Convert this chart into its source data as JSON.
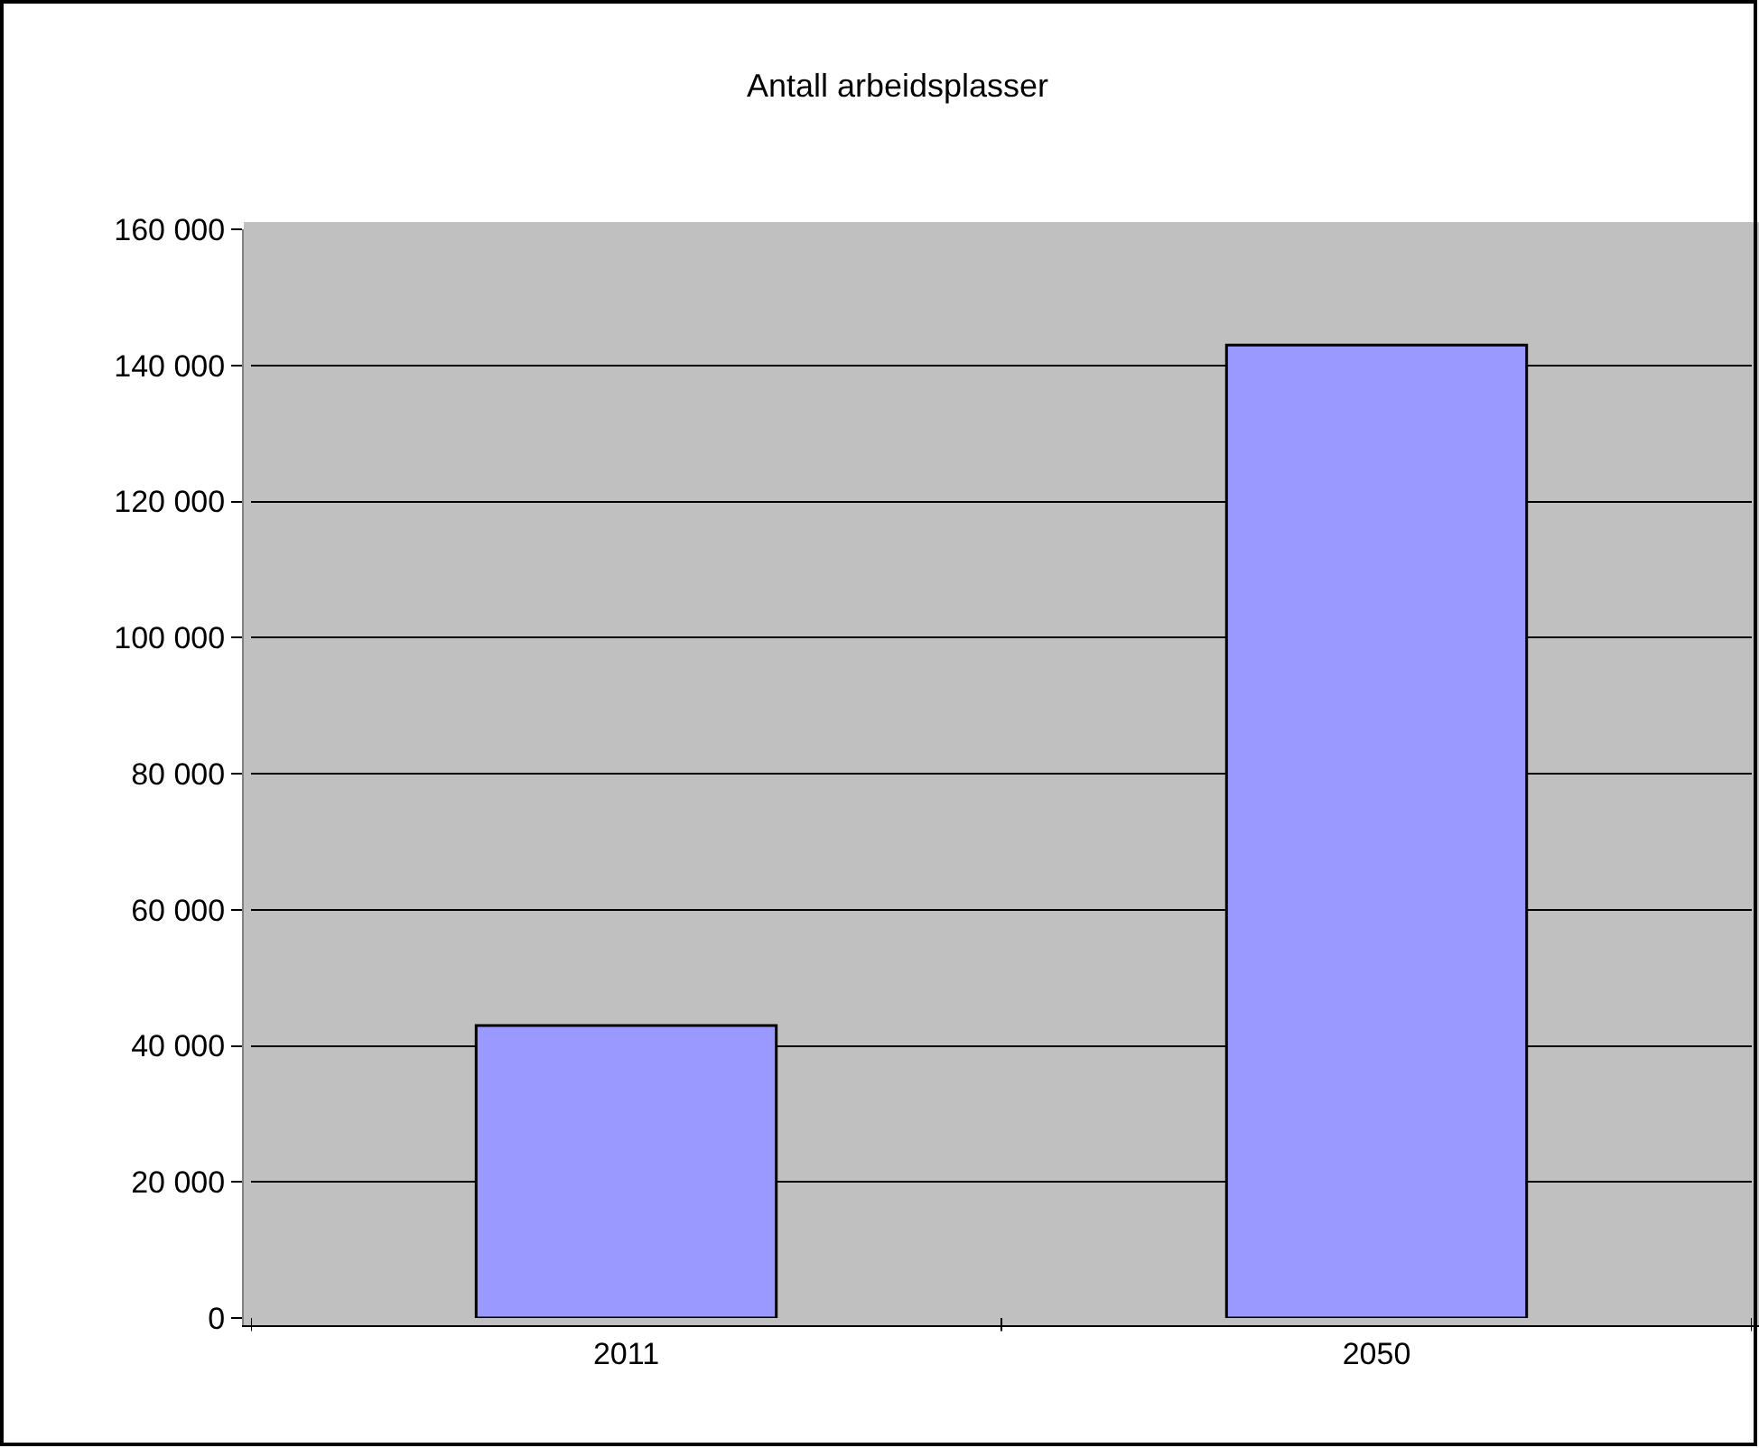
{
  "chart_data": {
    "type": "bar",
    "title": "Antall arbeidsplasser",
    "categories": [
      "2011",
      "2050"
    ],
    "values": [
      43000,
      143000
    ],
    "color": "#9999ff",
    "ylim": [
      0,
      160000
    ],
    "yticks": [
      {
        "value": 0,
        "label": "0"
      },
      {
        "value": 20000,
        "label": "20 000"
      },
      {
        "value": 40000,
        "label": "40 000"
      },
      {
        "value": 60000,
        "label": "60 000"
      },
      {
        "value": 80000,
        "label": "80 000"
      },
      {
        "value": 100000,
        "label": "100 000"
      },
      {
        "value": 120000,
        "label": "120 000"
      },
      {
        "value": 140000,
        "label": "140 000"
      },
      {
        "value": 160000,
        "label": "160 000"
      }
    ],
    "grid": "y"
  }
}
